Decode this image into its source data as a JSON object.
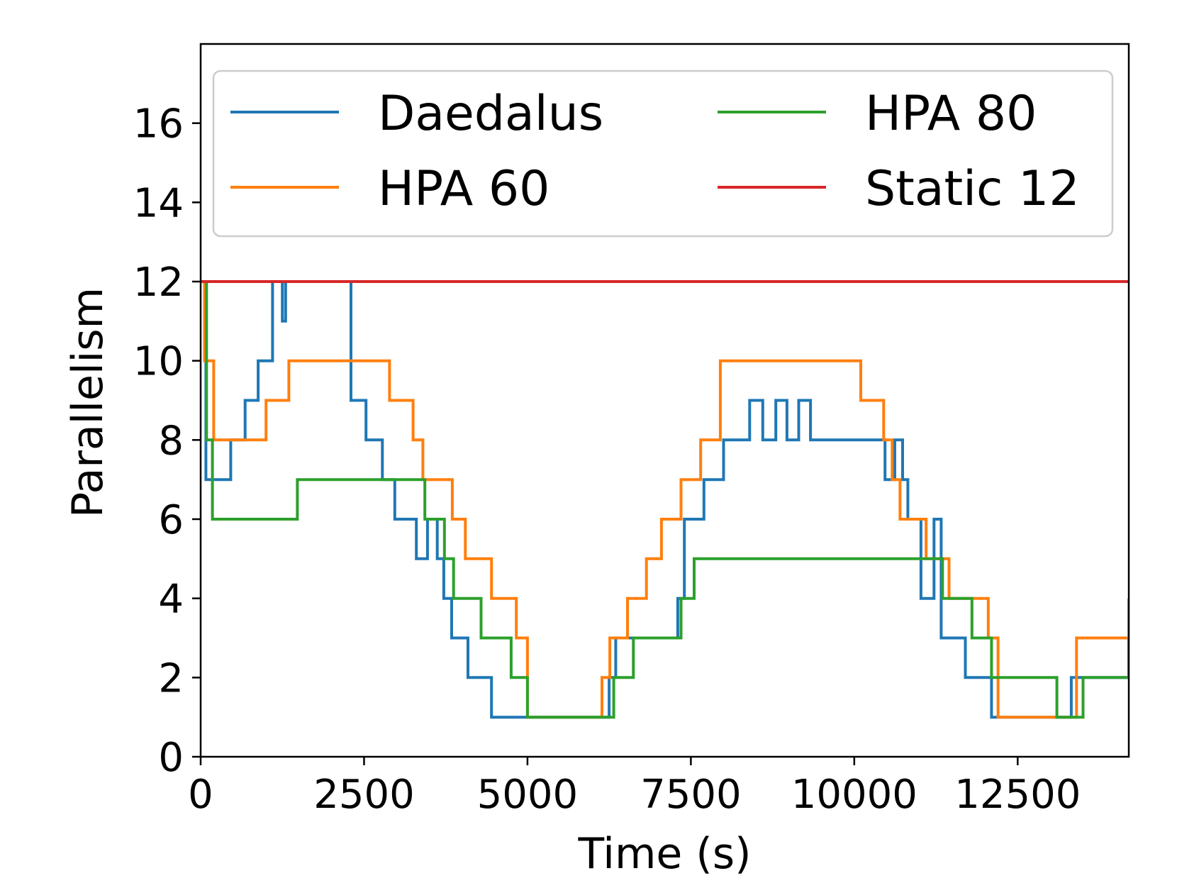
{
  "chart_data": {
    "type": "line",
    "title": "",
    "xlabel": "Time (s)",
    "ylabel": "Parallelism",
    "xlim": [
      0,
      14200
    ],
    "ylim": [
      0,
      18
    ],
    "xticks": [
      0,
      2500,
      5000,
      7500,
      10000,
      12500
    ],
    "yticks": [
      0,
      2,
      4,
      6,
      8,
      10,
      12,
      14,
      16
    ],
    "grid": false,
    "legend_position": "top",
    "series": [
      {
        "name": "Daedalus",
        "color": "#1f77b4",
        "step": true,
        "x": [
          0,
          80,
          460,
          680,
          880,
          1100,
          1250,
          1300,
          1520,
          1600,
          2300,
          2530,
          2750,
          2780,
          2970,
          3300,
          3470,
          3620,
          3720,
          3840,
          4090,
          4450,
          5000,
          6100,
          6250,
          6350,
          7300,
          7400,
          7450,
          7700,
          8000,
          8400,
          8600,
          8800,
          8970,
          9150,
          9330,
          9570,
          10000,
          10470,
          10620,
          10740,
          10820,
          11020,
          11220,
          11330,
          11510,
          11700,
          12100,
          13100,
          13200,
          13320,
          13480,
          13580,
          14200
        ],
        "y": [
          12,
          7,
          8,
          9,
          10,
          12,
          11,
          12,
          12,
          12,
          9,
          8,
          8,
          7,
          6,
          5,
          6,
          5,
          4,
          3,
          2,
          1,
          1,
          1,
          2,
          3,
          4,
          6,
          6,
          7,
          8,
          9,
          8,
          9,
          8,
          9,
          8,
          8,
          8,
          7,
          8,
          7,
          6,
          4,
          6,
          3,
          3,
          2,
          1,
          1,
          1,
          2,
          2,
          2,
          3
        ]
      },
      {
        "name": "HPA 60",
        "color": "#ff7f0e",
        "step": true,
        "x": [
          0,
          60,
          200,
          1000,
          1350,
          1650,
          2890,
          3250,
          3400,
          3850,
          4050,
          4450,
          4830,
          5000,
          6140,
          6260,
          6530,
          6820,
          7050,
          7350,
          7650,
          7950,
          8150,
          8500,
          10100,
          10450,
          10580,
          10700,
          11100,
          11450,
          12050,
          12200,
          13150,
          13400,
          14000,
          14200
        ],
        "y": [
          12,
          10,
          8,
          9,
          10,
          10,
          9,
          8,
          7,
          6,
          5,
          4,
          3,
          1,
          2,
          3,
          4,
          5,
          6,
          7,
          8,
          10,
          10,
          10,
          9,
          8,
          7,
          6,
          5,
          4,
          3,
          1,
          1,
          3,
          3,
          4
        ]
      },
      {
        "name": "HPA 80",
        "color": "#2ca02c",
        "step": true,
        "x": [
          0,
          90,
          180,
          1480,
          1650,
          3430,
          3730,
          3870,
          4290,
          4750,
          5000,
          6320,
          6620,
          7350,
          7550,
          10000,
          11050,
          11350,
          11800,
          12100,
          13100,
          13500,
          13800,
          14200
        ],
        "y": [
          12,
          8,
          6,
          7,
          7,
          6,
          5,
          4,
          3,
          2,
          1,
          2,
          3,
          4,
          5,
          5,
          5,
          4,
          3,
          2,
          1,
          2,
          2,
          3
        ]
      },
      {
        "name": "Static 12",
        "color": "#d62728",
        "step": false,
        "x": [
          0,
          14200
        ],
        "y": [
          12,
          12
        ]
      }
    ]
  }
}
